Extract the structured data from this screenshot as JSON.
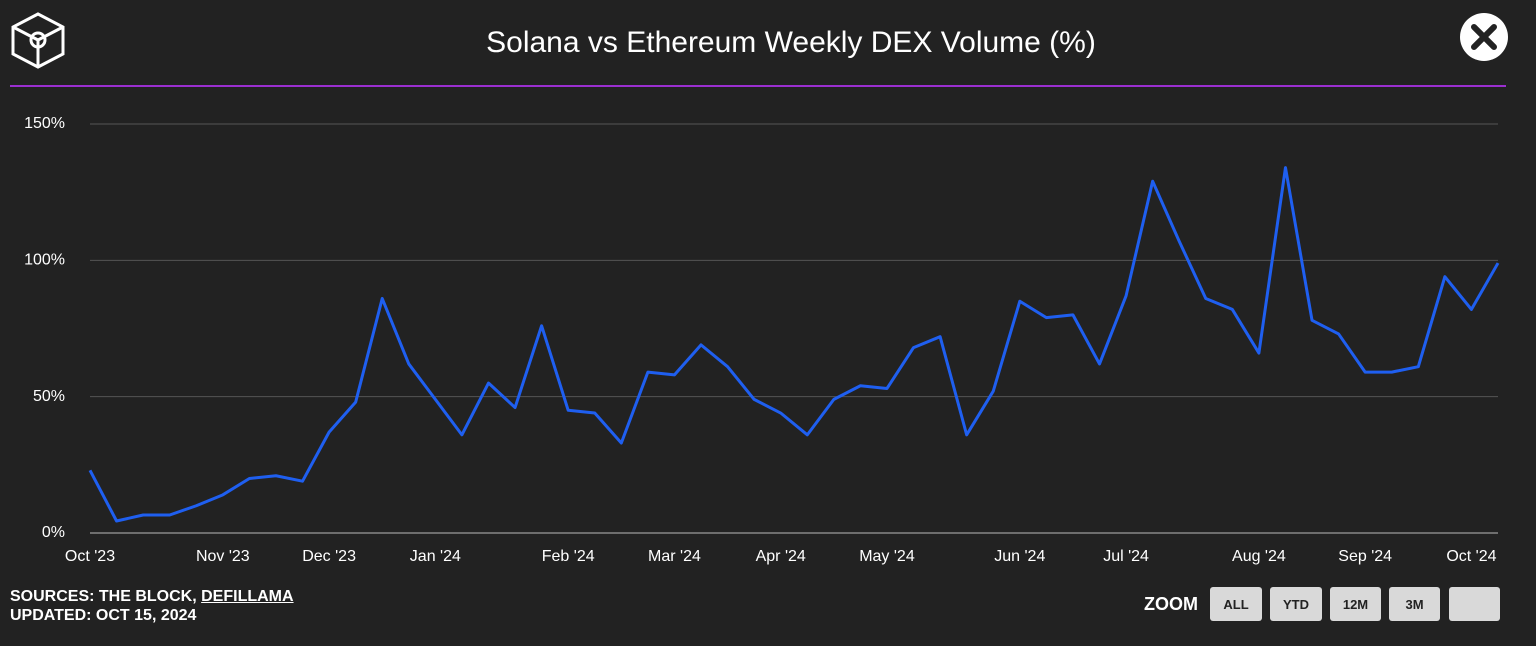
{
  "chart_data": {
    "type": "line",
    "title": "Solana vs Ethereum Weekly DEX Volume (%)",
    "categories": [
      "Oct '23",
      null,
      null,
      null,
      null,
      "Nov '23",
      null,
      null,
      null,
      "Dec '23",
      null,
      null,
      null,
      "Jan '24",
      null,
      null,
      null,
      null,
      "Feb '24",
      null,
      null,
      null,
      "Mar '24",
      null,
      null,
      null,
      "Apr '24",
      null,
      null,
      null,
      "May '24",
      null,
      null,
      null,
      null,
      "Jun '24",
      null,
      null,
      null,
      "Jul '24",
      null,
      null,
      null,
      null,
      "Aug '24",
      null,
      null,
      null,
      "Sep '24",
      null,
      null,
      null,
      "Oct '24",
      null
    ],
    "series": [
      {
        "color": "#1f5ff0",
        "values": [
          23,
          4.4,
          6.6,
          6.6,
          10,
          14,
          20,
          21,
          19,
          37,
          48,
          86,
          62,
          49,
          36,
          55,
          46,
          76,
          45,
          44,
          33,
          59,
          58,
          69,
          61,
          49,
          44,
          36,
          49,
          54,
          53,
          68,
          72,
          36,
          52,
          85,
          79,
          80,
          62,
          87,
          129,
          107,
          86,
          82,
          66,
          134,
          78,
          73,
          59,
          59,
          61,
          94,
          82,
          99
        ]
      }
    ],
    "ylim": [
      0,
      150
    ],
    "yticks": [
      {
        "value": 0,
        "label": "0%"
      },
      {
        "value": 50,
        "label": "50%"
      },
      {
        "value": 100,
        "label": "100%"
      },
      {
        "value": 150,
        "label": "150%"
      }
    ],
    "grid": true
  },
  "footer": {
    "sources": "SOURCES: THE BLOCK, ",
    "sources_link": "DEFILLAMA",
    "updated": "UPDATED: OCT 15, 2024"
  },
  "zoom": {
    "label": "ZOOM",
    "buttons": [
      "ALL",
      "YTD",
      "12M",
      "3M"
    ]
  }
}
